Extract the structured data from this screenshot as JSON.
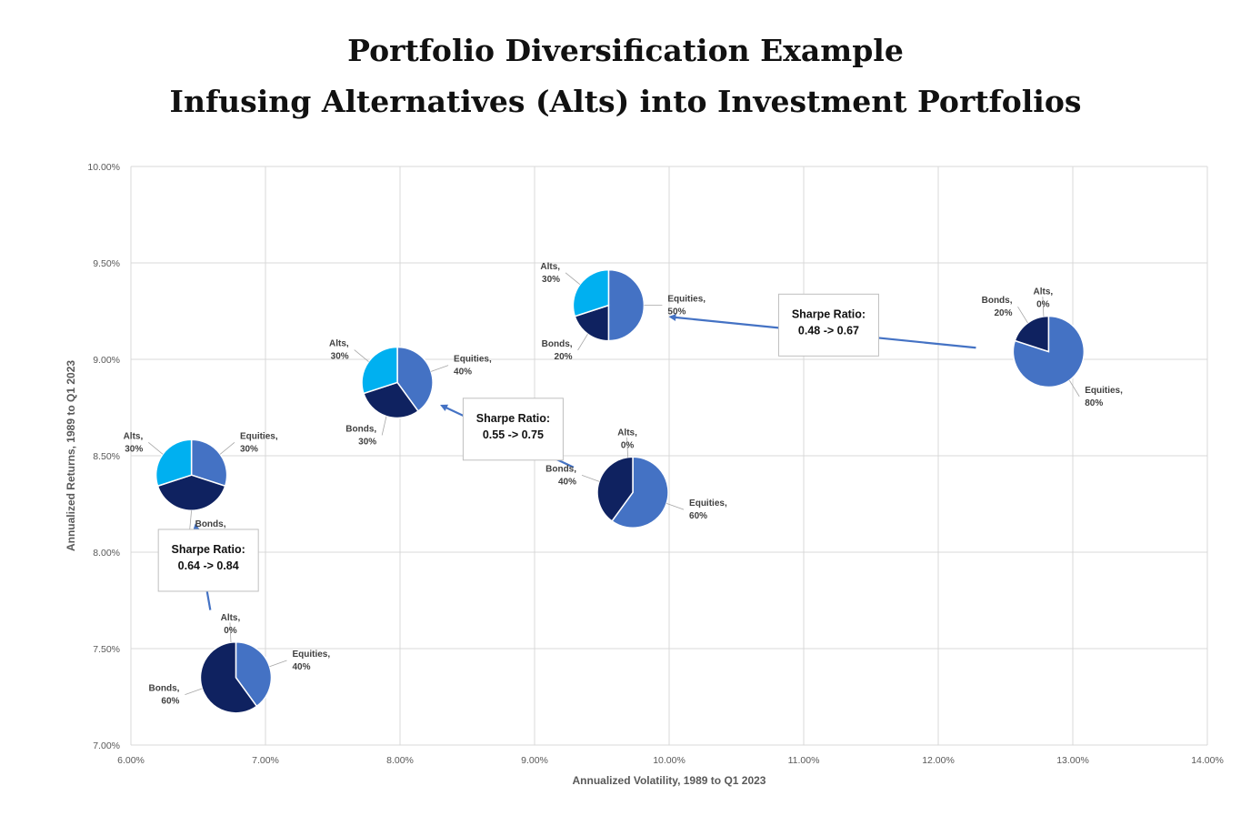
{
  "header": {
    "title": "Portfolio Diversification Example",
    "subtitle": "Infusing Alternatives (Alts) into Investment Portfolios"
  },
  "colors": {
    "equities": "#4472C4",
    "bonds": "#0F2260",
    "alts": "#00B0F0",
    "grid": "#D9D9D9",
    "arrow": "#4472C4"
  },
  "chart_data": {
    "type": "scatter",
    "marker": "pie",
    "xlabel": "Annualized Volatility, 1989 to Q1 2023",
    "ylabel": "Annualized Returns, 1989 to Q1 2023",
    "xlim": [
      0.06,
      0.14
    ],
    "ylim": [
      0.07,
      0.1
    ],
    "xticks": [
      "6.00%",
      "7.00%",
      "8.00%",
      "9.00%",
      "10.00%",
      "11.00%",
      "12.00%",
      "13.00%",
      "14.00%"
    ],
    "yticks": [
      "7.00%",
      "7.50%",
      "8.00%",
      "8.50%",
      "9.00%",
      "9.50%",
      "10.00%"
    ],
    "grid": true,
    "categories": [
      "Equities",
      "Bonds",
      "Alts"
    ],
    "portfolios": [
      {
        "x": 0.0678,
        "y": 0.0735,
        "equities": 40,
        "bonds": 60,
        "alts": 0,
        "labels": {
          "equities": [
            "Equities,",
            "40%"
          ],
          "bonds": [
            "Bonds,",
            "60%"
          ],
          "alts": [
            "Alts,",
            "0%"
          ]
        }
      },
      {
        "x": 0.0645,
        "y": 0.084,
        "equities": 30,
        "bonds": 40,
        "alts": 30,
        "labels": {
          "equities": [
            "Equities,",
            "30%"
          ],
          "bonds": [
            "Bonds,",
            "40%"
          ],
          "alts": [
            "Alts,",
            "30%"
          ]
        }
      },
      {
        "x": 0.0973,
        "y": 0.0831,
        "equities": 60,
        "bonds": 40,
        "alts": 0,
        "labels": {
          "equities": [
            "Equities,",
            "60%"
          ],
          "bonds": [
            "Bonds,",
            "40%"
          ],
          "alts": [
            "Alts,",
            "0%"
          ]
        }
      },
      {
        "x": 0.0798,
        "y": 0.0888,
        "equities": 40,
        "bonds": 30,
        "alts": 30,
        "labels": {
          "equities": [
            "Equities,",
            "40%"
          ],
          "bonds": [
            "Bonds,",
            "30%"
          ],
          "alts": [
            "Alts,",
            "30%"
          ]
        }
      },
      {
        "x": 0.1282,
        "y": 0.0904,
        "equities": 80,
        "bonds": 20,
        "alts": 0,
        "labels": {
          "equities": [
            "Equities,",
            "80%"
          ],
          "bonds": [
            "Bonds,",
            "20%"
          ],
          "alts": [
            "Alts,",
            "0%"
          ]
        }
      },
      {
        "x": 0.0955,
        "y": 0.0928,
        "equities": 50,
        "bonds": 20,
        "alts": 30,
        "labels": {
          "equities": [
            "Equities,",
            "50%"
          ],
          "bonds": [
            "Bonds,",
            "20%"
          ],
          "alts": [
            "Alts,",
            "30%"
          ]
        }
      }
    ],
    "annotations": [
      {
        "text": [
          "Sharpe Ratio:",
          "0.64 -> 0.84"
        ],
        "arrow_from": {
          "x": 0.0659,
          "y": 0.077
        },
        "arrow_to": {
          "x": 0.0648,
          "y": 0.0814
        }
      },
      {
        "text": [
          "Sharpe Ratio:",
          "0.55 -> 0.75"
        ],
        "arrow_from": {
          "x": 0.0929,
          "y": 0.0844
        },
        "arrow_to": {
          "x": 0.0831,
          "y": 0.0876
        }
      },
      {
        "text": [
          "Sharpe Ratio:",
          "0.48 -> 0.67"
        ],
        "arrow_from": {
          "x": 0.1228,
          "y": 0.0906
        },
        "arrow_to": {
          "x": 0.1001,
          "y": 0.0922
        }
      }
    ]
  }
}
